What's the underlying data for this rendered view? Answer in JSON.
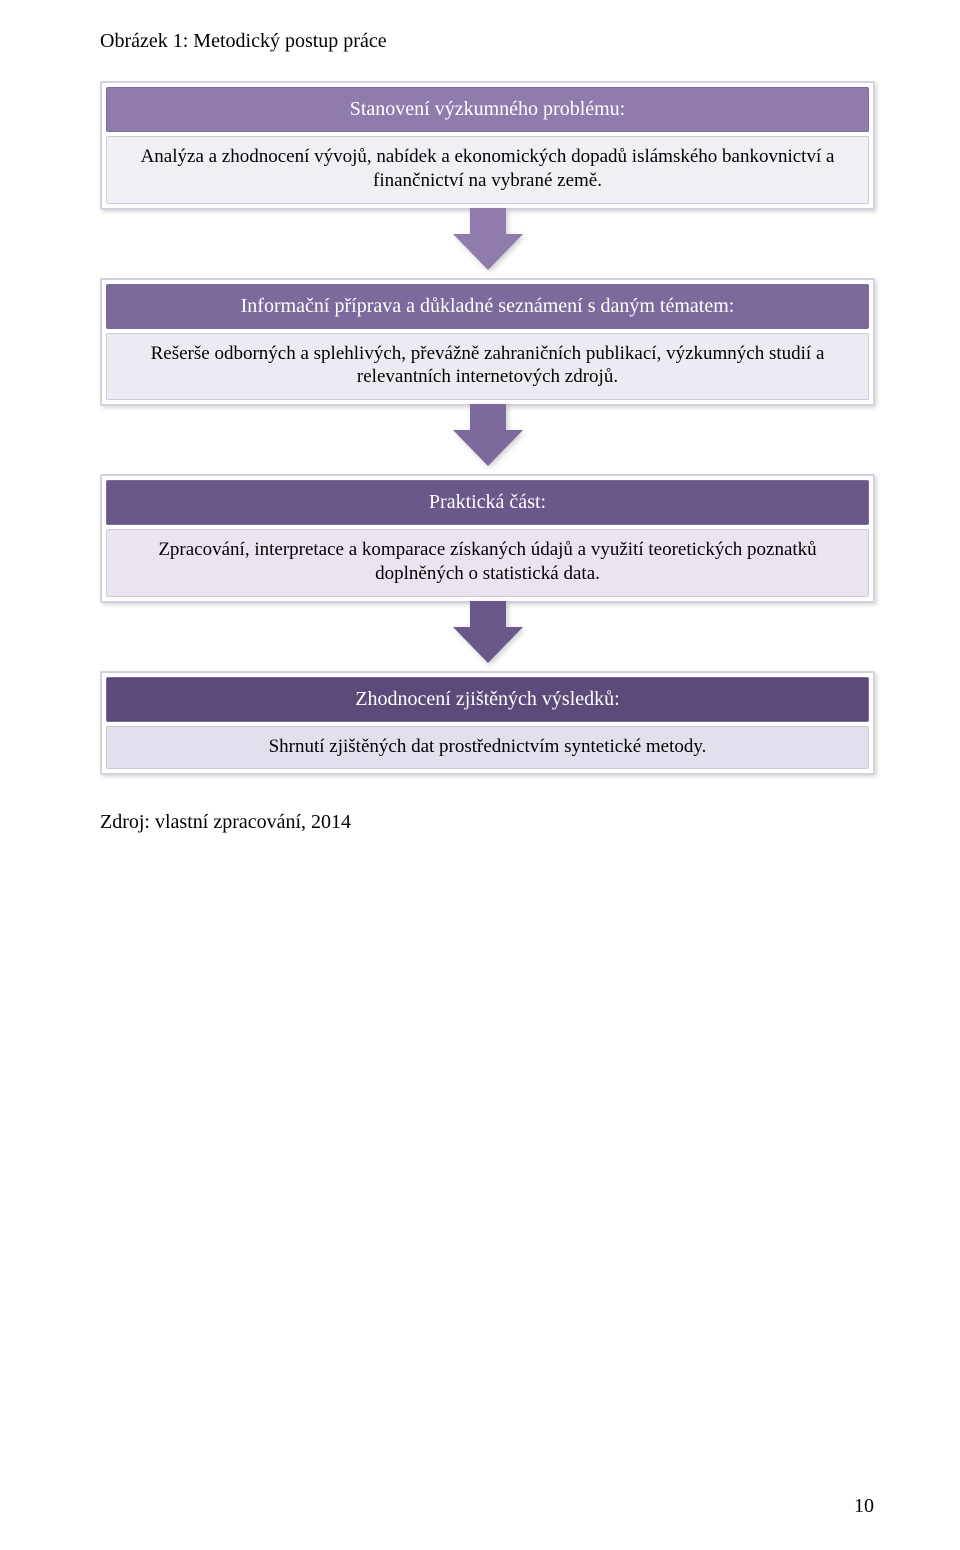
{
  "figure_title": "Obrázek 1: Metodický postup práce",
  "text_color": "#000000",
  "bg_color": "#ffffff",
  "box_border_color": "#d5d0dd",
  "body_bg_color": "#f3f0f6",
  "header_text_color": "#ffffff",
  "boxes": [
    {
      "header": "Stanovení výzkumného problému:",
      "body": "Analýza a zhodnocení vývojů, nabídek a ekonomických dopadů islámského bankovnictví a finančnictví na vybrané země.",
      "header_color": "#8f7cad",
      "body_bg": "#f2eef6",
      "arrow_color": "#8f7cad"
    },
    {
      "header": "Informační příprava a důkladné seznámení s daným tématem:",
      "body": "Rešerše odborných a splehlivých, převážně zahraničních publikací, výzkumných studií a relevantních internetových zdrojů.",
      "header_color": "#7d6a9c",
      "body_bg": "#eeeaf3",
      "arrow_color": "#7d6a9c"
    },
    {
      "header": "Praktická část:",
      "body": "Zpracování, interpretace a komparace získaných údajů a využití teoretických poznatků doplněných o statistická data.",
      "header_color": "#6b588b",
      "body_bg": "#e9e4f0",
      "arrow_color": "#6b588b"
    },
    {
      "header": "Zhodnocení zjištěných výsledků:",
      "body": "Shrnutí zjištěných dat prostřednictvím syntetické metody.",
      "header_color": "#5c4a7a",
      "body_bg": "#e4dfec",
      "arrow_color": null
    }
  ],
  "source_text": "Zdroj: vlastní zpracování, 2014",
  "page_number": "10"
}
